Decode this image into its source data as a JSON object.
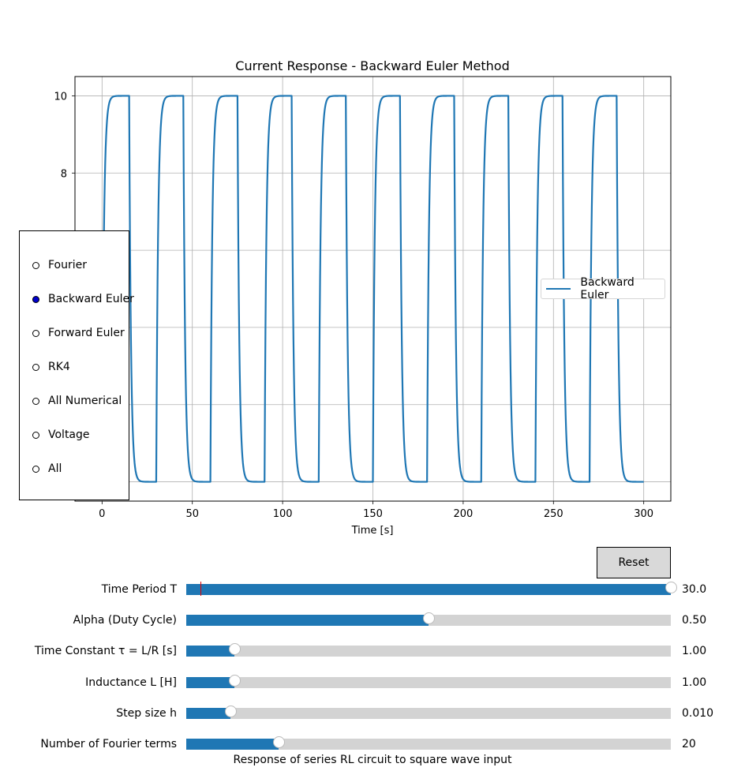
{
  "chart_data": {
    "type": "line",
    "title": "Current Response - Backward Euler Method",
    "xlabel": "Time [s]",
    "ylabel": "",
    "xlim": [
      -15,
      315
    ],
    "ylim": [
      -0.5,
      10.5
    ],
    "xticks": [
      0,
      50,
      100,
      150,
      200,
      250,
      300
    ],
    "yticks": [
      0,
      2,
      4,
      6,
      8,
      10
    ],
    "grid": true,
    "legend_position": "center-right",
    "series": [
      {
        "name": "Backward Euler",
        "color": "#1f77b4",
        "kind": "square-wave-rl-response",
        "period": 30.0,
        "duty_cycle": 0.5,
        "tau": 1.0,
        "amplitude": 10,
        "t_start": 0,
        "t_end": 300
      }
    ]
  },
  "radio": {
    "selected_index": 1,
    "options": [
      "Fourier",
      "Backward Euler",
      "Forward Euler",
      "RK4",
      "All Numerical",
      "Voltage",
      "All"
    ]
  },
  "reset_label": "Reset",
  "sliders": [
    {
      "label": "Time Period T",
      "value_text": "30.0",
      "fraction": 1.0,
      "init_fraction": 0.03
    },
    {
      "label": "Alpha (Duty Cycle)",
      "value_text": "0.50",
      "fraction": 0.5
    },
    {
      "label": "Time Constant τ = L/R [s]",
      "value_text": "1.00",
      "fraction": 0.1
    },
    {
      "label": "Inductance L [H]",
      "value_text": "1.00",
      "fraction": 0.1
    },
    {
      "label": "Step size h",
      "value_text": "0.010",
      "fraction": 0.091
    },
    {
      "label": "Number of Fourier terms",
      "value_text": "20",
      "fraction": 0.19
    }
  ],
  "caption": "Response of series RL circuit to square wave input"
}
